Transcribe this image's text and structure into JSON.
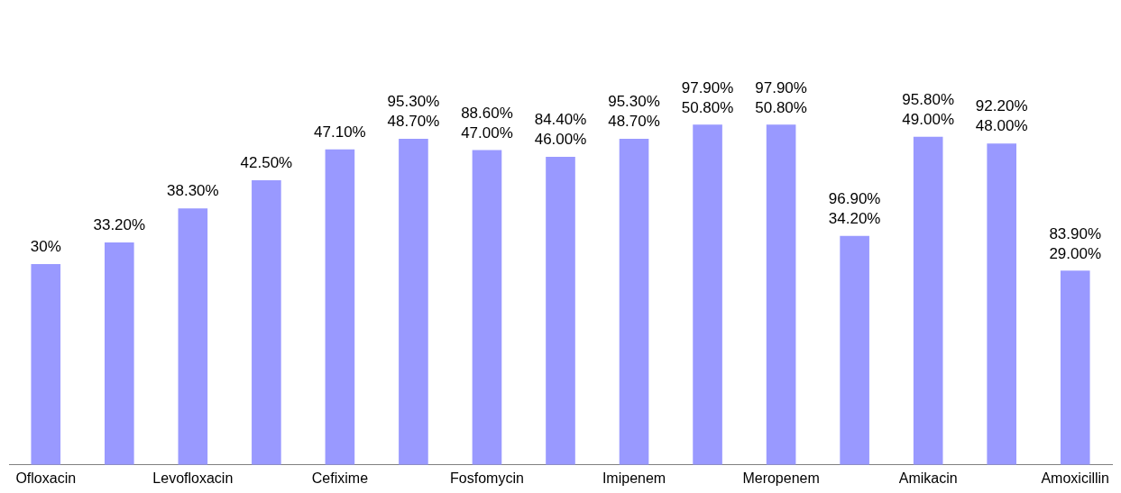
{
  "chart_data": {
    "type": "bar",
    "categories": [
      "Ofloxacin",
      null,
      "Levofloxacin",
      null,
      "Cefixime",
      null,
      "Fosfomycin",
      null,
      "Imipenem",
      null,
      "Meropenem",
      null,
      "Amikacin",
      null,
      "Amoxicillin"
    ],
    "values": [
      30,
      33.2,
      38.3,
      42.5,
      47.1,
      48.7,
      47.0,
      46.0,
      48.7,
      50.8,
      50.8,
      34.2,
      49.0,
      48.0,
      29.0
    ],
    "value_labels": [
      "30%",
      "33.20%",
      "38.30%",
      "42.50%",
      "47.10%",
      "95.30%\n48.70%",
      "88.60%\n47.00%",
      "84.40%\n46.00%",
      "95.30%\n48.70%",
      "97.90%\n50.80%",
      "97.90%\n50.80%",
      "96.90%\n34.20%",
      "95.80%\n49.00%",
      "92.20%\n48.00%",
      "83.90%\n29.00%"
    ],
    "color": "#9999ff",
    "grid": false,
    "legend": false
  }
}
